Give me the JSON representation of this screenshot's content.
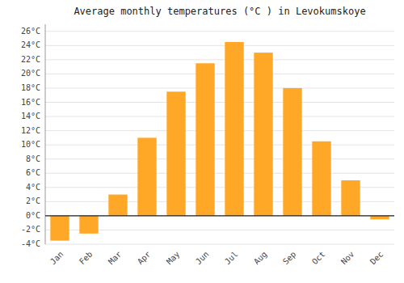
{
  "chart_data": {
    "type": "bar",
    "title": "Average monthly temperatures (°C ) in Levokumskoye",
    "categories": [
      "Jan",
      "Feb",
      "Mar",
      "Apr",
      "May",
      "Jun",
      "Jul",
      "Aug",
      "Sep",
      "Oct",
      "Nov",
      "Dec"
    ],
    "values": [
      -3.5,
      -2.5,
      3.0,
      11.0,
      17.5,
      21.5,
      24.5,
      23.0,
      18.0,
      10.5,
      5.0,
      -0.5
    ],
    "color": "#FFA726",
    "ylim": [
      -4,
      27
    ],
    "yticks": [
      {
        "value": -4,
        "label": "-4°C"
      },
      {
        "value": -2,
        "label": "-2°C"
      },
      {
        "value": 0,
        "label": "0°C"
      },
      {
        "value": 2,
        "label": "2°C"
      },
      {
        "value": 4,
        "label": "4°C"
      },
      {
        "value": 6,
        "label": "6°C"
      },
      {
        "value": 8,
        "label": "8°C"
      },
      {
        "value": 10,
        "label": "10°C"
      },
      {
        "value": 12,
        "label": "12°C"
      },
      {
        "value": 14,
        "label": "14°C"
      },
      {
        "value": 16,
        "label": "16°C"
      },
      {
        "value": 18,
        "label": "18°C"
      },
      {
        "value": 20,
        "label": "20°C"
      },
      {
        "value": 22,
        "label": "22°C"
      },
      {
        "value": 24,
        "label": "24°C"
      },
      {
        "value": 26,
        "label": "26°C"
      }
    ],
    "grid": true
  }
}
